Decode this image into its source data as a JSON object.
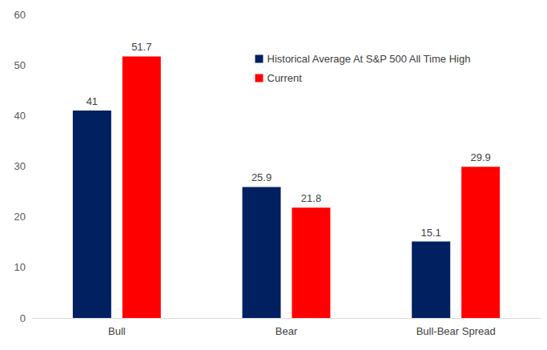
{
  "chart_data": {
    "type": "bar",
    "categories": [
      "Bull",
      "Bear",
      "Bull-Bear Spread"
    ],
    "series": [
      {
        "name": "Historical Average At S&P 500 All Time High",
        "color": "#002060",
        "values": [
          41.0,
          25.9,
          15.1
        ]
      },
      {
        "name": "Current",
        "color": "#ff0000",
        "values": [
          51.7,
          21.8,
          29.9
        ]
      }
    ],
    "ylim": [
      0,
      60
    ],
    "yticks": [
      0,
      10,
      20,
      30,
      40,
      50,
      60
    ],
    "grid": false,
    "data_labels": true,
    "legend": "top right"
  }
}
